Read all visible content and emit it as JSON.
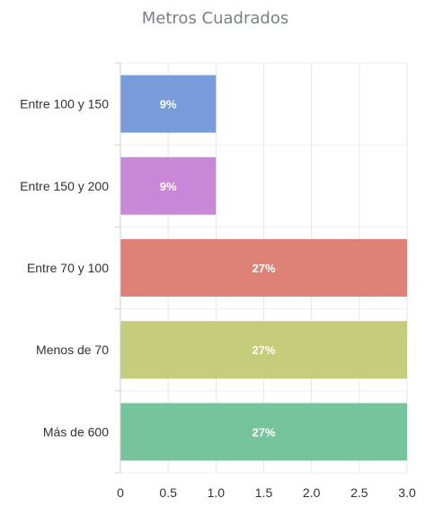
{
  "chart_data": {
    "type": "bar",
    "orientation": "horizontal",
    "title": "Metros Cuadrados",
    "categories": [
      "Entre 100 y 150",
      "Entre 150 y 200",
      "Entre 70 y 100",
      "Menos de 70",
      "Más de 600"
    ],
    "values": [
      1,
      1,
      3,
      3,
      3
    ],
    "data_labels": [
      "9%",
      "9%",
      "27%",
      "27%",
      "27%"
    ],
    "colors": [
      "#789bd9",
      "#c987d7",
      "#de8277",
      "#c5cc7b",
      "#77c49c"
    ],
    "xlim": [
      0,
      3
    ],
    "xticks": [
      "0",
      "0.5",
      "1.0",
      "1.5",
      "2.0",
      "2.5",
      "3.0"
    ],
    "xlabel": "",
    "ylabel": "",
    "grid": true,
    "legend": "none"
  }
}
